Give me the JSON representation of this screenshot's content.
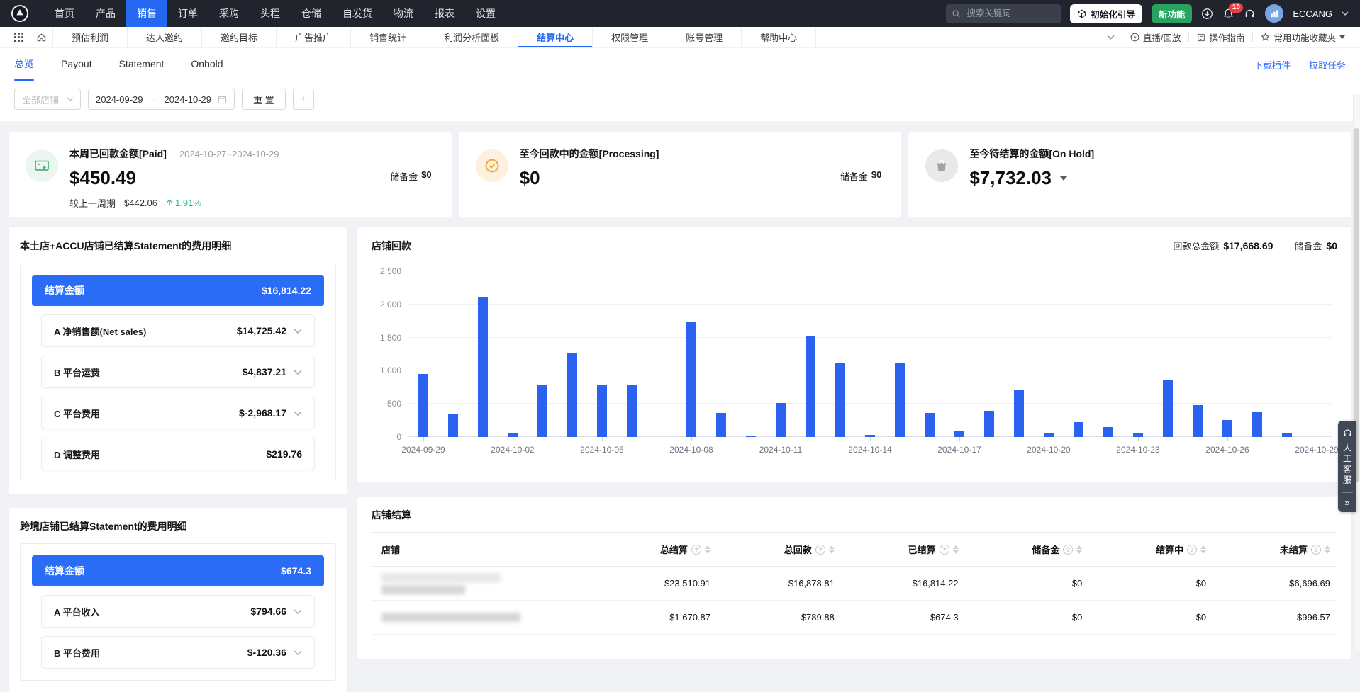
{
  "colors": {
    "accent": "#2468f2",
    "bar_blue": "#2b63f0",
    "success_green": "#2fbf8f",
    "warning_orange": "#f0a32f",
    "link_blue": "#2b6bff",
    "header_blue": "#2b6cf6"
  },
  "topnav": {
    "items": [
      "首页",
      "产品",
      "销售",
      "订单",
      "采购",
      "头程",
      "仓储",
      "自发货",
      "物流",
      "报表",
      "设置"
    ],
    "active_item": "销售",
    "search_placeholder": "搜索关键词",
    "init_guide_label": "初始化引导",
    "new_feature_label": "新功能",
    "notification_count": "10",
    "account_name": "ECCANG"
  },
  "toolbar": {
    "tabs": [
      "预估利润",
      "达人邀约",
      "邀约目标",
      "广告推广",
      "销售统计",
      "利润分析面板",
      "结算中心",
      "权限管理",
      "账号管理",
      "帮助中心"
    ],
    "active_tab": "结算中心",
    "live_label": "直播/回放",
    "guide_label": "操作指南",
    "favorites_label": "常用功能收藏夹"
  },
  "page_tabs": {
    "items": [
      "总览",
      "Payout",
      "Statement",
      "Onhold"
    ],
    "active": "总览",
    "link_download": "下载插件",
    "link_pull": "拉取任务"
  },
  "filters": {
    "shop_placeholder": "全部店铺",
    "date_start": "2024-09-29",
    "date_separator": "→",
    "date_end": "2024-10-29",
    "reset_label": "重 置",
    "add_label": "+"
  },
  "cards": {
    "paid": {
      "title": "本周已回款金额[Paid]",
      "period": "2024-10-27~2024-10-29",
      "amount": "$450.49",
      "compare_label": "较上一周期",
      "compare_amount": "$442.06",
      "trend_pct": "1.91%",
      "reserve_label": "储备金",
      "reserve_value": "$0"
    },
    "processing": {
      "title": "至今回款中的金额[Processing]",
      "amount": "$0",
      "reserve_label": "储备金",
      "reserve_value": "$0"
    },
    "onhold": {
      "title": "至今待结算的金额[On Hold]",
      "amount": "$7,732.03"
    }
  },
  "panel_local": {
    "title": "本土店+ACCU店铺已结算Statement的费用明细",
    "header_label": "结算金额",
    "header_value": "$16,814.22",
    "items": [
      {
        "label": "A 净销售额(Net sales)",
        "value": "$14,725.42",
        "expandable": true
      },
      {
        "label": "B 平台运费",
        "value": "$4,837.21",
        "expandable": true
      },
      {
        "label": "C 平台费用",
        "value": "$-2,968.17",
        "expandable": true
      },
      {
        "label": "D 调整费用",
        "value": "$219.76",
        "expandable": false
      }
    ]
  },
  "panel_cross": {
    "title": "跨境店铺已结算Statement的费用明细",
    "header_label": "结算金额",
    "header_value": "$674.3",
    "items": [
      {
        "label": "A 平台收入",
        "value": "$794.66",
        "expandable": true
      },
      {
        "label": "B 平台费用",
        "value": "$-120.36",
        "expandable": true
      }
    ]
  },
  "chart_panel": {
    "title": "店铺回款",
    "total_label": "回款总金额",
    "total_value": "$17,668.69",
    "reserve_label": "储备金",
    "reserve_value": "$0"
  },
  "chart_data": {
    "type": "bar",
    "title": "店铺回款",
    "x": [
      "2024-09-29",
      "2024-09-30",
      "2024-10-01",
      "2024-10-02",
      "2024-10-03",
      "2024-10-04",
      "2024-10-05",
      "2024-10-06",
      "2024-10-07",
      "2024-10-08",
      "2024-10-09",
      "2024-10-10",
      "2024-10-11",
      "2024-10-12",
      "2024-10-13",
      "2024-10-14",
      "2024-10-15",
      "2024-10-16",
      "2024-10-17",
      "2024-10-18",
      "2024-10-19",
      "2024-10-20",
      "2024-10-21",
      "2024-10-22",
      "2024-10-23",
      "2024-10-24",
      "2024-10-25",
      "2024-10-26",
      "2024-10-27",
      "2024-10-28",
      "2024-10-29"
    ],
    "values": [
      950,
      350,
      2120,
      60,
      790,
      1270,
      775,
      795,
      0,
      1740,
      360,
      25,
      510,
      1520,
      1120,
      30,
      1120,
      360,
      90,
      395,
      720,
      50,
      220,
      150,
      55,
      850,
      480,
      255,
      380,
      65,
      0
    ],
    "ylim": [
      0,
      2500
    ],
    "yticks": [
      "0",
      "500",
      "1,000",
      "1,500",
      "2,000",
      "2,500"
    ],
    "x_tick_every": 3,
    "bar_color": "#2b63f0",
    "grid": true,
    "legend": false,
    "xlabel": "",
    "ylabel": ""
  },
  "table": {
    "title": "店铺结算",
    "shop_column": "店铺",
    "columns": [
      "总结算",
      "总回款",
      "已结算",
      "储备金",
      "结算中",
      "未结算"
    ],
    "rows": [
      {
        "blur_lines": 2,
        "values": [
          "$23,510.91",
          "$16,878.81",
          "$16,814.22",
          "$0",
          "$0",
          "$6,696.69"
        ]
      },
      {
        "blur_lines": 1,
        "values": [
          "$1,670.87",
          "$789.88",
          "$674.3",
          "$0",
          "$0",
          "$996.57"
        ]
      }
    ]
  },
  "cs_widget": {
    "label": "人工客服",
    "collapse": "»"
  }
}
